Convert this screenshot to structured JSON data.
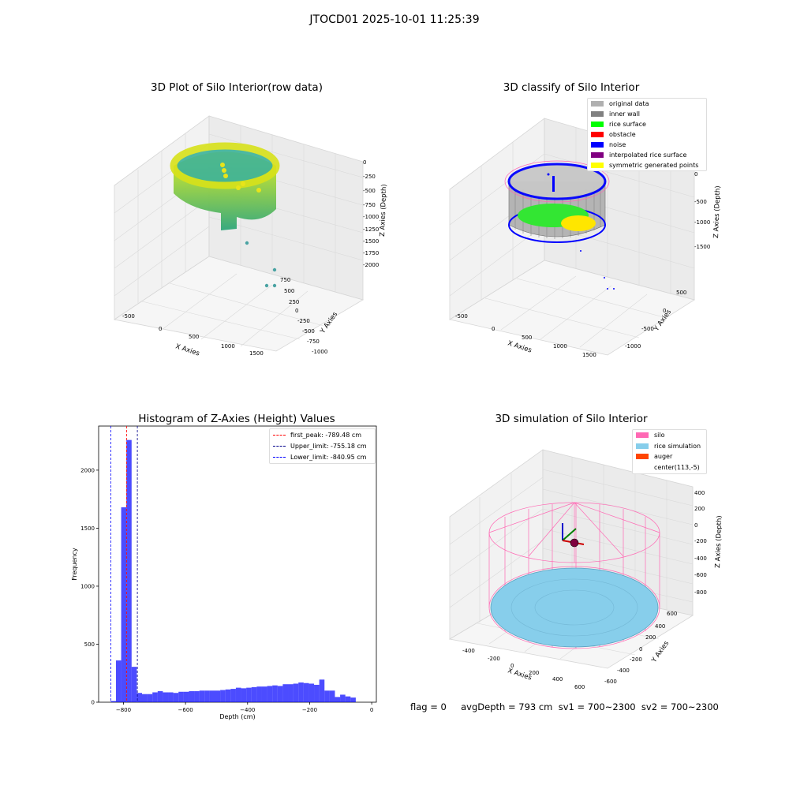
{
  "suptitle": "JTOCD01 2025-10-01 11:25:39",
  "panels": {
    "raw": {
      "title": "3D Plot of Silo Interior(row data)",
      "xlabel": "X Axies",
      "ylabel": "Y Axies",
      "zlabel": "Z Axies (Depth)",
      "xticks": [
        "-500",
        "0",
        "500",
        "1000",
        "1500"
      ],
      "yticks": [
        "750",
        "500",
        "250",
        "0",
        "-250",
        "-500",
        "-750",
        "-1000"
      ],
      "zticks": [
        "0",
        "-250",
        "-500",
        "-750",
        "-1000",
        "-1250",
        "-1500",
        "-1750",
        "-2000"
      ]
    },
    "classify": {
      "title": "3D classify of Silo Interior",
      "xlabel": "X Axies",
      "ylabel": "Y Axies",
      "zlabel": "Z Axies (Depth)",
      "xticks": [
        "-500",
        "0",
        "500",
        "1000",
        "1500"
      ],
      "yticks": [
        "500",
        "0",
        "-500",
        "-1000"
      ],
      "zticks": [
        "0",
        "-500",
        "-1000",
        "-1500"
      ],
      "legend": [
        {
          "label": "original data",
          "color": "#b0b0b0"
        },
        {
          "label": "inner wall",
          "color": "#808080"
        },
        {
          "label": "rice surface",
          "color": "#00ff00"
        },
        {
          "label": "obstacle",
          "color": "#ff0000"
        },
        {
          "label": "noise",
          "color": "#0000ff"
        },
        {
          "label": "interpolated rice surface",
          "color": "#800080"
        },
        {
          "label": "symmetric generated points",
          "color": "#ffff00"
        }
      ]
    },
    "simulation": {
      "title": "3D simulation of Silo Interior",
      "xlabel": "X Axies",
      "ylabel": "Y Axies",
      "zlabel": "Z Axies (Depth)",
      "xticks": [
        "-400",
        "-200",
        "0",
        "200",
        "400",
        "600"
      ],
      "yticks": [
        "600",
        "400",
        "200",
        "0",
        "-200",
        "-400",
        "-600"
      ],
      "zticks": [
        "400",
        "200",
        "0",
        "-200",
        "-400",
        "-600",
        "-800"
      ],
      "legend": [
        {
          "label": "silo",
          "color": "#ff69b4"
        },
        {
          "label": "rice simulation",
          "color": "#87ceeb"
        },
        {
          "label": "auger",
          "color": "#ff4500"
        },
        {
          "label": "center(113,-5)",
          "color": "#ffffff"
        }
      ]
    }
  },
  "chart_data": [
    {
      "type": "bar",
      "title": "Histogram of Z-Axies (Height) Values",
      "xlabel": "Depth (cm)",
      "ylabel": "Frequency",
      "xlim": [
        -880,
        15
      ],
      "ylim": [
        0,
        2380
      ],
      "xticks": [
        -800,
        -600,
        -400,
        -200,
        0
      ],
      "yticks": [
        0,
        500,
        1000,
        1500,
        2000
      ],
      "bar_color": "#0000ff",
      "bin_width": 16.8,
      "bin_starts": [
        -840.95,
        -824.15,
        -807.35,
        -790.55,
        -773.75,
        -756.95,
        -740.15,
        -723.35,
        -706.55,
        -689.75,
        -672.95,
        -656.15,
        -639.35,
        -622.55,
        -605.75,
        -588.95,
        -572.15,
        -555.35,
        -538.55,
        -521.75,
        -504.95,
        -488.15,
        -471.35,
        -454.55,
        -437.75,
        -420.95,
        -404.15,
        -387.35,
        -370.55,
        -353.75,
        -336.95,
        -320.15,
        -303.35,
        -286.55,
        -269.75,
        -252.95,
        -236.15,
        -219.35,
        -202.55,
        -185.75,
        -168.95,
        -152.15,
        -135.35,
        -118.55,
        -101.75,
        -84.95,
        -68.15,
        -51.35,
        -34.55,
        -17.75
      ],
      "values": [
        10,
        360,
        1680,
        2260,
        305,
        80,
        70,
        70,
        85,
        95,
        85,
        85,
        80,
        90,
        90,
        95,
        95,
        100,
        100,
        100,
        100,
        105,
        110,
        115,
        125,
        120,
        125,
        130,
        135,
        135,
        140,
        145,
        140,
        155,
        155,
        160,
        170,
        165,
        160,
        150,
        195,
        100,
        100,
        45,
        65,
        50,
        40,
        0,
        0,
        0
      ],
      "vlines": [
        {
          "label": "first_peak: -789.48 cm",
          "x": -789.48,
          "color": "#ff0000"
        },
        {
          "label": "Upper_limit: -755.18 cm",
          "x": -755.18,
          "color": "#00008b"
        },
        {
          "label": "Lower_limit: -840.95 cm",
          "x": -840.95,
          "color": "#0000ff"
        }
      ]
    }
  ],
  "status_line": "flag = 0     avgDepth = 793 cm  sv1 = 700~2300  sv2 = 700~2300"
}
